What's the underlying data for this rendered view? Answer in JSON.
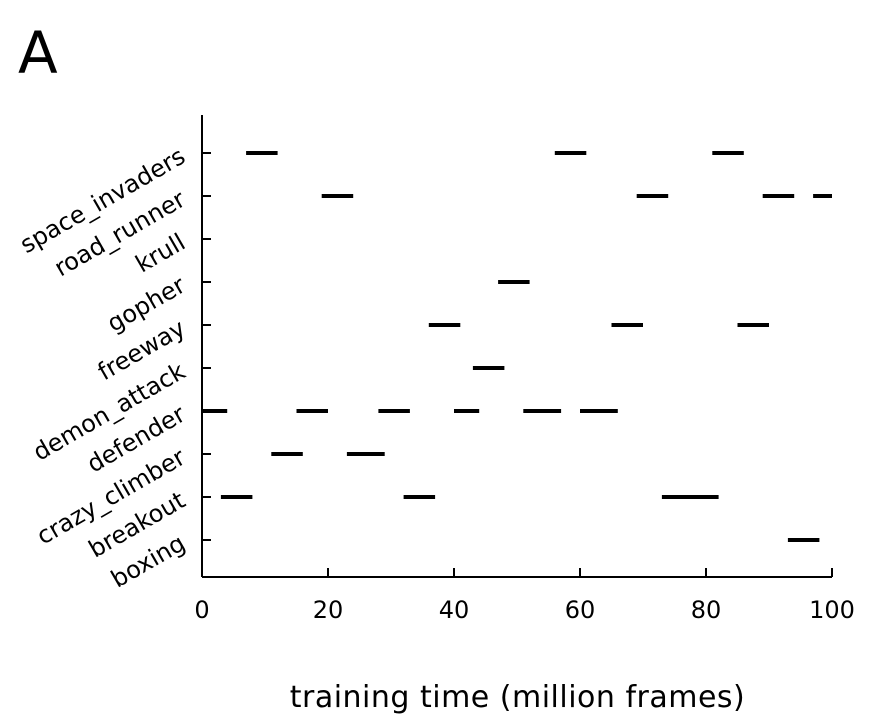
{
  "panel_label": "A",
  "chart_data": {
    "type": "timeline",
    "xlabel": "training time (million frames)",
    "ylabel": "",
    "xlim": [
      0,
      100
    ],
    "xticks": [
      0,
      20,
      40,
      60,
      80,
      100
    ],
    "categories": [
      "space_invaders",
      "road_runner",
      "krull",
      "gopher",
      "freeway",
      "demon_attack",
      "defender",
      "crazy_climber",
      "breakout",
      "boxing"
    ],
    "grid": false,
    "bar_color": "#000000",
    "segments": {
      "space_invaders": [
        [
          7,
          12
        ],
        [
          56,
          61
        ],
        [
          81,
          86
        ]
      ],
      "road_runner": [
        [
          19,
          24
        ],
        [
          69,
          74
        ],
        [
          89,
          94
        ],
        [
          97,
          100
        ]
      ],
      "krull": [],
      "gopher": [
        [
          47,
          52
        ]
      ],
      "freeway": [
        [
          36,
          41
        ],
        [
          65,
          70
        ],
        [
          85,
          90
        ]
      ],
      "demon_attack": [
        [
          43,
          48
        ]
      ],
      "defender": [
        [
          0,
          4
        ],
        [
          15,
          20
        ],
        [
          28,
          33
        ],
        [
          40,
          44
        ],
        [
          51,
          57
        ],
        [
          60,
          66
        ]
      ],
      "crazy_climber": [
        [
          11,
          16
        ],
        [
          23,
          29
        ]
      ],
      "breakout": [
        [
          3,
          8
        ],
        [
          32,
          37
        ],
        [
          73,
          82
        ]
      ],
      "boxing": [
        [
          93,
          98
        ]
      ]
    }
  }
}
